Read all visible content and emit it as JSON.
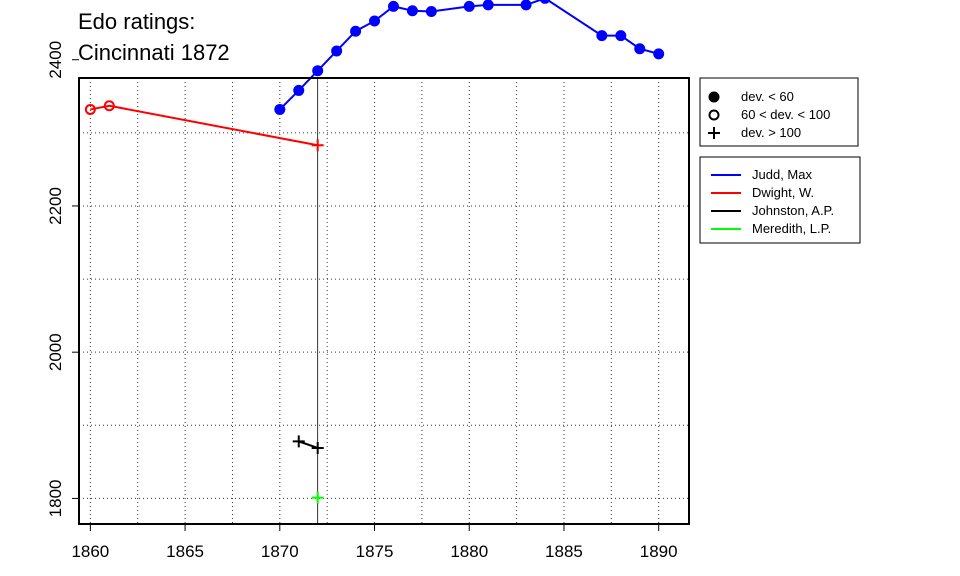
{
  "chart_data": {
    "type": "line",
    "title": [
      "Edo ratings:",
      "Cincinnati 1872"
    ],
    "xlabel": "",
    "ylabel": "",
    "xlim": [
      1859.4,
      1891.6
    ],
    "ylim": [
      1765,
      2375
    ],
    "x_ticks": [
      1860,
      1865,
      1870,
      1875,
      1880,
      1885,
      1890
    ],
    "y_ticks": [
      1800,
      2000,
      2200,
      2400
    ],
    "grid": true,
    "reference_line_x": 1872,
    "series": [
      {
        "name": "Judd, Max",
        "color": "#0000ff",
        "points": [
          {
            "x": 1870,
            "y": 2332,
            "dev": "lt60"
          },
          {
            "x": 1871,
            "y": 2358,
            "dev": "lt60"
          },
          {
            "x": 1872,
            "y": 2385,
            "dev": "lt60"
          },
          {
            "x": 1873,
            "y": 2412,
            "dev": "lt60"
          },
          {
            "x": 1874,
            "y": 2439,
            "dev": "lt60"
          },
          {
            "x": 1875,
            "y": 2453,
            "dev": "lt60"
          },
          {
            "x": 1876,
            "y": 2473,
            "dev": "lt60"
          },
          {
            "x": 1877,
            "y": 2467,
            "dev": "lt60"
          },
          {
            "x": 1878,
            "y": 2466,
            "dev": "lt60"
          },
          {
            "x": 1880,
            "y": 2473,
            "dev": "lt60"
          },
          {
            "x": 1881,
            "y": 2475,
            "dev": "lt60"
          },
          {
            "x": 1883,
            "y": 2475,
            "dev": "lt60"
          },
          {
            "x": 1884,
            "y": 2484,
            "dev": "lt60"
          },
          {
            "x": 1887,
            "y": 2433,
            "dev": "lt60"
          },
          {
            "x": 1888,
            "y": 2433,
            "dev": "lt60"
          },
          {
            "x": 1889,
            "y": 2415,
            "dev": "lt60"
          },
          {
            "x": 1890,
            "y": 2408,
            "dev": "lt60"
          }
        ]
      },
      {
        "name": "Dwight, W.",
        "color": "#ff0000",
        "points": [
          {
            "x": 1860,
            "y": 2332,
            "dev": "60to100"
          },
          {
            "x": 1861,
            "y": 2337,
            "dev": "60to100"
          },
          {
            "x": 1872,
            "y": 2283,
            "dev": "gt100"
          }
        ]
      },
      {
        "name": "Johnston, A.P.",
        "color": "#000000",
        "points": [
          {
            "x": 1871,
            "y": 1878,
            "dev": "gt100"
          },
          {
            "x": 1872,
            "y": 1869,
            "dev": "gt100"
          }
        ]
      },
      {
        "name": "Meredith, L.P.",
        "color": "#00ff00",
        "points": [
          {
            "x": 1872,
            "y": 1801,
            "dev": "gt100"
          }
        ]
      }
    ],
    "symbol_legend": [
      {
        "symbol": "filled-circle",
        "label": "dev. < 60"
      },
      {
        "symbol": "open-circle",
        "label": "60 < dev. < 100"
      },
      {
        "symbol": "plus",
        "label": "dev. > 100"
      }
    ]
  }
}
